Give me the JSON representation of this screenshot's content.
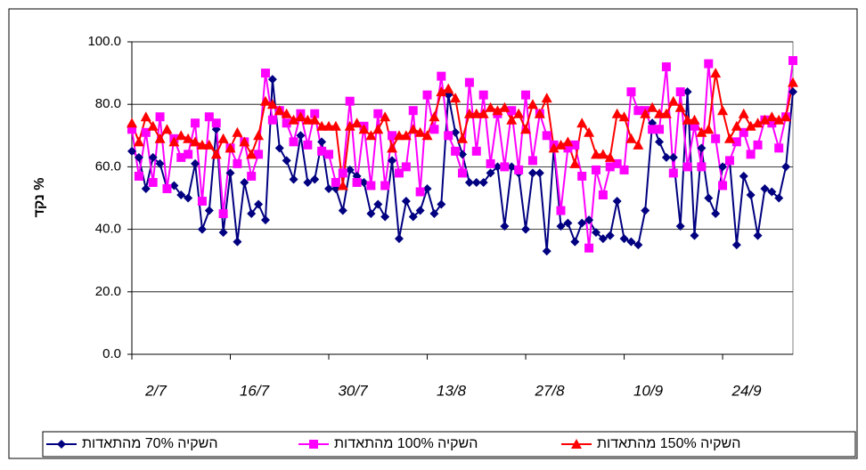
{
  "chart_data": {
    "type": "line",
    "ylabel": "נקד %",
    "categories": [
      "2/7",
      null,
      null,
      null,
      null,
      null,
      null,
      null,
      null,
      null,
      null,
      null,
      null,
      null,
      "16/7",
      null,
      null,
      null,
      null,
      null,
      null,
      null,
      null,
      null,
      null,
      null,
      null,
      null,
      "30/7",
      null,
      null,
      null,
      null,
      null,
      null,
      null,
      null,
      null,
      null,
      null,
      null,
      null,
      "13/8",
      null,
      null,
      null,
      null,
      null,
      null,
      null,
      null,
      null,
      null,
      null,
      null,
      null,
      "27/8",
      null,
      null,
      null,
      null,
      null,
      null,
      null,
      null,
      null,
      null,
      null,
      null,
      null,
      "10/9",
      null,
      null,
      null,
      null,
      null,
      null,
      null,
      null,
      null,
      null,
      null,
      null,
      null,
      "24/9",
      null,
      null,
      null,
      null,
      null,
      null,
      null,
      null,
      null,
      null
    ],
    "ylim": [
      0,
      100
    ],
    "yticks": [
      {
        "value": 0,
        "label": "0.0"
      },
      {
        "value": 20,
        "label": "20.0"
      },
      {
        "value": 40,
        "label": "40.0"
      },
      {
        "value": 60,
        "label": "60.0"
      },
      {
        "value": 80,
        "label": "80.0"
      },
      {
        "value": 100,
        "label": "100.0"
      }
    ],
    "grid": true,
    "legend": "bottom",
    "series": [
      {
        "name": "השקיה 70% מהתאדות",
        "color": "#000080",
        "marker": "diamond",
        "values": [
          65,
          63,
          53,
          63,
          61,
          53,
          54,
          51,
          50,
          61,
          40,
          46,
          72,
          39,
          58,
          36,
          55,
          45,
          48,
          43,
          88,
          66,
          62,
          56,
          70,
          55,
          56,
          68,
          53,
          53,
          46,
          59,
          57,
          55,
          45,
          48,
          44,
          62,
          37,
          49,
          44,
          46,
          53,
          45,
          48,
          83,
          71,
          64,
          55,
          55,
          55,
          58,
          60,
          41,
          60,
          58,
          40,
          58,
          58,
          33,
          66,
          41,
          42,
          36,
          42,
          43,
          39,
          37,
          38,
          49,
          37,
          36,
          35,
          46,
          74,
          68,
          63,
          63,
          41,
          84,
          38,
          66,
          50,
          45,
          60,
          62,
          35,
          57,
          51,
          38,
          53,
          52,
          50,
          60,
          84
        ]
      },
      {
        "name": "השקיה 100% מהתאדות",
        "color": "#ff00ff",
        "marker": "square",
        "values": [
          72,
          57,
          71,
          55,
          76,
          53,
          69,
          63,
          64,
          74,
          49,
          76,
          74,
          45,
          66,
          61,
          68,
          57,
          64,
          90,
          75,
          78,
          74,
          68,
          77,
          67,
          77,
          65,
          64,
          55,
          58,
          81,
          55,
          73,
          54,
          77,
          54,
          70,
          58,
          60,
          78,
          52,
          83,
          72,
          89,
          70,
          65,
          58,
          87,
          65,
          83,
          61,
          77,
          60,
          78,
          59,
          83,
          62,
          77,
          70,
          67,
          46,
          66,
          67,
          57,
          34,
          59,
          51,
          60,
          61,
          59,
          84,
          78,
          78,
          72,
          72,
          92,
          58,
          84,
          60,
          73,
          60,
          93,
          69,
          54,
          62,
          68,
          71,
          64,
          67,
          75,
          74,
          66,
          76,
          94
        ]
      },
      {
        "name": "השקיה 150% מהתאדות",
        "color": "#ff0000",
        "marker": "triangle",
        "values": [
          74,
          68,
          76,
          73,
          69,
          72,
          68,
          70,
          69,
          68,
          67,
          67,
          64,
          69,
          66,
          71,
          68,
          64,
          70,
          81,
          80,
          78,
          77,
          75,
          76,
          75,
          75,
          73,
          73,
          73,
          54,
          73,
          74,
          72,
          70,
          72,
          76,
          66,
          70,
          70,
          72,
          71,
          70,
          76,
          84,
          85,
          82,
          69,
          77,
          77,
          77,
          79,
          78,
          79,
          75,
          77,
          72,
          80,
          77,
          82,
          66,
          67,
          68,
          61,
          74,
          71,
          64,
          64,
          63,
          77,
          76,
          69,
          67,
          77,
          79,
          77,
          77,
          81,
          79,
          75,
          75,
          71,
          72,
          90,
          78,
          69,
          73,
          77,
          73,
          74,
          75,
          76,
          75,
          76,
          87
        ]
      }
    ]
  }
}
